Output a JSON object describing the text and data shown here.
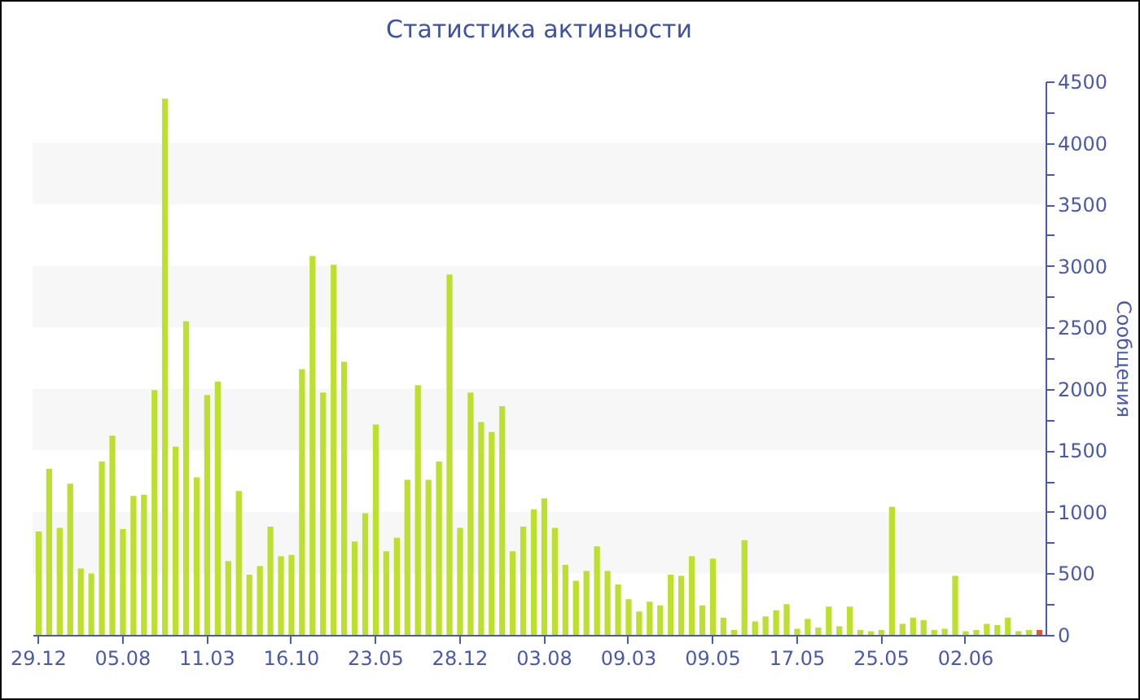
{
  "chart_data": {
    "type": "bar",
    "title": "Статистика активности",
    "ylabel": "Сообщения",
    "categories": [
      "29.12",
      null,
      null,
      null,
      null,
      null,
      null,
      null,
      "05.08",
      null,
      null,
      null,
      null,
      null,
      null,
      null,
      "11.03",
      null,
      null,
      null,
      null,
      null,
      null,
      null,
      "16.10",
      null,
      null,
      null,
      null,
      null,
      null,
      null,
      "23.05",
      null,
      null,
      null,
      null,
      null,
      null,
      null,
      "28.12",
      null,
      null,
      null,
      null,
      null,
      null,
      null,
      "03.08",
      null,
      null,
      null,
      null,
      null,
      null,
      null,
      "09.03",
      null,
      null,
      null,
      null,
      null,
      null,
      null,
      "09.05",
      null,
      null,
      null,
      null,
      null,
      null,
      null,
      "17.05",
      null,
      null,
      null,
      null,
      null,
      null,
      null,
      "25.05",
      null,
      null,
      null,
      null,
      null,
      null,
      null,
      "02.06",
      null,
      null,
      null,
      null,
      null,
      null,
      null
    ],
    "values": [
      840,
      1350,
      870,
      1230,
      540,
      500,
      1410,
      1620,
      860,
      1130,
      1140,
      1990,
      4360,
      1530,
      2550,
      1280,
      1950,
      2060,
      600,
      1170,
      490,
      560,
      880,
      640,
      650,
      2160,
      3080,
      1970,
      3010,
      2220,
      760,
      990,
      1710,
      680,
      790,
      1260,
      2030,
      1260,
      1410,
      2930,
      870,
      1970,
      1730,
      1650,
      1860,
      680,
      880,
      1020,
      1110,
      870,
      570,
      440,
      520,
      720,
      520,
      410,
      290,
      190,
      270,
      240,
      490,
      480,
      640,
      240,
      620,
      140,
      40,
      770,
      110,
      150,
      200,
      250,
      50,
      130,
      60,
      230,
      70,
      230,
      40,
      30,
      40,
      1040,
      90,
      140,
      120,
      40,
      50,
      480,
      30,
      40,
      90,
      80,
      140,
      30,
      40,
      40
    ],
    "colors": [
      "#bde030",
      "#bde030",
      "#bde030",
      "#bde030",
      "#bde030",
      "#bde030",
      "#bde030",
      "#bde030",
      "#bde030",
      "#bde030",
      "#bde030",
      "#bde030",
      "#bde030",
      "#bde030",
      "#bde030",
      "#bde030",
      "#bde030",
      "#bde030",
      "#bde030",
      "#bde030",
      "#bde030",
      "#bde030",
      "#bde030",
      "#bde030",
      "#bde030",
      "#bde030",
      "#bde030",
      "#bde030",
      "#bde030",
      "#bde030",
      "#bde030",
      "#bde030",
      "#bde030",
      "#bde030",
      "#bde030",
      "#bde030",
      "#bde030",
      "#bde030",
      "#bde030",
      "#bde030",
      "#bde030",
      "#bde030",
      "#bde030",
      "#bde030",
      "#bde030",
      "#bde030",
      "#bde030",
      "#bde030",
      "#bde030",
      "#bde030",
      "#bde030",
      "#bde030",
      "#bde030",
      "#bde030",
      "#bde030",
      "#bde030",
      "#bde030",
      "#bde030",
      "#bde030",
      "#bde030",
      "#bde030",
      "#bde030",
      "#bde030",
      "#bde030",
      "#bde030",
      "#bde030",
      "#bde030",
      "#bde030",
      "#bde030",
      "#bde030",
      "#bde030",
      "#bde030",
      "#bde030",
      "#bde030",
      "#bde030",
      "#bde030",
      "#bde030",
      "#bde030",
      "#bde030",
      "#bde030",
      "#bde030",
      "#bde030",
      "#bde030",
      "#bde030",
      "#bde030",
      "#bde030",
      "#bde030",
      "#bde030",
      "#bde030",
      "#bde030",
      "#bde030",
      "#bde030",
      "#bde030",
      "#bde030",
      "#bde030",
      "#e8552a"
    ],
    "ylim": [
      0,
      4500
    ],
    "yticks": [
      0,
      {
        "value": 250,
        "label": null
      },
      500,
      {
        "value": 750,
        "label": null
      },
      1000,
      {
        "value": 1250,
        "label": null
      },
      1500,
      {
        "value": 1750,
        "label": null
      },
      2000,
      {
        "value": 2250,
        "label": null
      },
      2500,
      {
        "value": 2750,
        "label": null
      },
      3000,
      {
        "value": 3250,
        "label": null
      },
      3500,
      {
        "value": 3750,
        "label": null
      },
      4000,
      {
        "value": 4250,
        "label": null
      },
      4500
    ],
    "bands": [
      {
        "axis": "y",
        "from": 500,
        "to": 1000,
        "color": "#f7f7f7"
      },
      {
        "axis": "y",
        "from": 1500,
        "to": 2000,
        "color": "#f7f7f7"
      },
      {
        "axis": "y",
        "from": 2500,
        "to": 3000,
        "color": "#f7f7f7"
      },
      {
        "axis": "y",
        "from": 3500,
        "to": 4000,
        "color": "#f7f7f7"
      }
    ]
  }
}
